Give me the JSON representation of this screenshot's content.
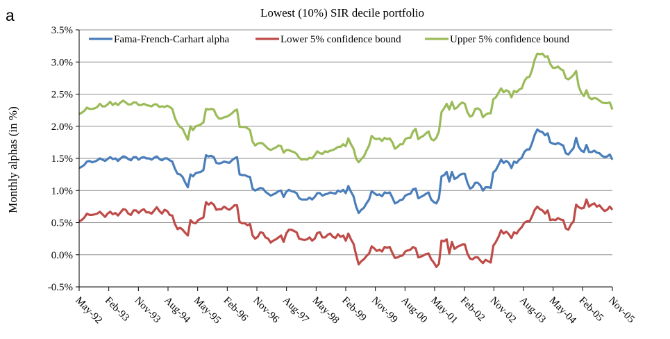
{
  "chart_data": {
    "type": "line",
    "panel_label": "a",
    "title": "Lowest (10%) SIR decile portfolio",
    "xlabel": "",
    "ylabel": "Monthly  alphas (in %)",
    "ylim": [
      -0.5,
      3.5
    ],
    "y_ticks": [
      "-0.5%",
      "0.0%",
      "0.5%",
      "1.0%",
      "1.5%",
      "2.0%",
      "2.5%",
      "3.0%",
      "3.5%"
    ],
    "y_tick_values": [
      -0.5,
      0,
      0.5,
      1,
      1.5,
      2,
      2.5,
      3,
      3.5
    ],
    "x_ticks": [
      "May-92",
      "Feb-93",
      "Nov-93",
      "Aug-94",
      "May-95",
      "Feb-96",
      "Nov-96",
      "Aug-97",
      "May-98",
      "Feb-99",
      "Nov-99",
      "Aug-00",
      "May-01",
      "Feb-02",
      "Nov-02",
      "Aug-03",
      "May-04",
      "Feb-05",
      "Nov-05"
    ],
    "x_start": "May-92",
    "x_end": "Nov-05",
    "grid": "horizontal",
    "legend_position": "top",
    "series": [
      {
        "name": "Fama-French-Carhart alpha",
        "color": "#4a7ebb",
        "values": [
          1.35,
          1.37,
          1.4,
          1.45,
          1.46,
          1.44,
          1.45,
          1.47,
          1.5,
          1.48,
          1.46,
          1.49,
          1.52,
          1.49,
          1.5,
          1.46,
          1.5,
          1.53,
          1.52,
          1.49,
          1.47,
          1.52,
          1.52,
          1.48,
          1.51,
          1.52,
          1.5,
          1.5,
          1.48,
          1.51,
          1.53,
          1.49,
          1.47,
          1.5,
          1.5,
          1.47,
          1.45,
          1.34,
          1.26,
          1.25,
          1.21,
          1.12,
          1.05,
          1.25,
          1.22,
          1.27,
          1.28,
          1.29,
          1.32,
          1.55,
          1.53,
          1.54,
          1.52,
          1.43,
          1.42,
          1.43,
          1.45,
          1.44,
          1.43,
          1.47,
          1.5,
          1.52,
          1.25,
          1.24,
          1.24,
          1.22,
          1.21,
          1.03,
          1.0,
          1.02,
          1.04,
          1.03,
          0.98,
          0.95,
          0.92,
          0.94,
          0.96,
          0.99,
          1.0,
          0.9,
          0.98,
          1.01,
          0.99,
          0.98,
          0.96,
          0.88,
          0.86,
          0.86,
          0.86,
          0.89,
          0.86,
          0.9,
          0.96,
          0.96,
          0.92,
          0.94,
          0.95,
          0.97,
          0.96,
          0.95,
          1.0,
          0.98,
          1.01,
          0.96,
          1.07,
          0.98,
          0.91,
          0.75,
          0.65,
          0.7,
          0.73,
          0.8,
          0.86,
          0.99,
          0.96,
          0.93,
          0.94,
          0.91,
          0.97,
          0.96,
          0.97,
          0.89,
          0.8,
          0.82,
          0.85,
          0.86,
          0.92,
          0.94,
          0.95,
          1.02,
          1.03,
          0.88,
          0.9,
          0.92,
          0.95,
          0.97,
          0.86,
          0.82,
          0.8,
          0.88,
          1.22,
          1.24,
          1.29,
          1.14,
          1.29,
          1.18,
          1.2,
          1.24,
          1.26,
          1.26,
          1.12,
          1.03,
          1.05,
          1.12,
          1.12,
          1.08,
          1.0,
          1.05,
          1.05,
          1.04,
          1.28,
          1.32,
          1.4,
          1.48,
          1.43,
          1.46,
          1.43,
          1.35,
          1.45,
          1.43,
          1.48,
          1.51,
          1.6,
          1.64,
          1.64,
          1.74,
          1.87,
          1.95,
          1.92,
          1.91,
          1.86,
          1.89,
          1.75,
          1.73,
          1.72,
          1.74,
          1.72,
          1.7,
          1.58,
          1.56,
          1.61,
          1.66,
          1.82,
          1.68,
          1.62,
          1.6,
          1.71,
          1.6,
          1.6,
          1.62,
          1.59,
          1.58,
          1.54,
          1.52,
          1.53,
          1.56,
          1.48
        ]
      },
      {
        "name": "Lower 5% confidence bound",
        "color": "#be4b48",
        "values": [
          0.52,
          0.54,
          0.58,
          0.64,
          0.62,
          0.62,
          0.63,
          0.64,
          0.67,
          0.63,
          0.59,
          0.64,
          0.67,
          0.63,
          0.65,
          0.61,
          0.66,
          0.71,
          0.7,
          0.64,
          0.62,
          0.69,
          0.69,
          0.65,
          0.69,
          0.71,
          0.66,
          0.66,
          0.64,
          0.69,
          0.74,
          0.68,
          0.64,
          0.7,
          0.68,
          0.62,
          0.61,
          0.48,
          0.4,
          0.42,
          0.39,
          0.34,
          0.3,
          0.54,
          0.5,
          0.49,
          0.54,
          0.56,
          0.58,
          0.82,
          0.78,
          0.81,
          0.78,
          0.7,
          0.71,
          0.71,
          0.75,
          0.72,
          0.7,
          0.73,
          0.77,
          0.77,
          0.51,
          0.49,
          0.49,
          0.46,
          0.48,
          0.3,
          0.25,
          0.28,
          0.35,
          0.34,
          0.27,
          0.25,
          0.19,
          0.22,
          0.24,
          0.27,
          0.3,
          0.2,
          0.33,
          0.39,
          0.39,
          0.37,
          0.35,
          0.25,
          0.24,
          0.23,
          0.24,
          0.27,
          0.22,
          0.25,
          0.34,
          0.35,
          0.27,
          0.27,
          0.31,
          0.33,
          0.28,
          0.26,
          0.32,
          0.28,
          0.3,
          0.22,
          0.33,
          0.24,
          0.17,
          0.0,
          -0.15,
          -0.1,
          -0.07,
          -0.02,
          0.02,
          0.13,
          0.1,
          0.06,
          0.08,
          0.05,
          0.12,
          0.11,
          0.12,
          0.03,
          -0.05,
          -0.04,
          -0.02,
          -0.01,
          0.05,
          0.07,
          0.08,
          0.12,
          0.1,
          -0.04,
          -0.03,
          -0.01,
          0.01,
          0.02,
          -0.07,
          -0.12,
          -0.19,
          -0.14,
          0.22,
          0.21,
          0.24,
          0.02,
          0.2,
          0.09,
          0.12,
          0.14,
          0.16,
          0.16,
          0.02,
          -0.06,
          -0.07,
          -0.04,
          -0.04,
          -0.09,
          -0.13,
          -0.08,
          -0.1,
          -0.12,
          0.14,
          0.2,
          0.28,
          0.38,
          0.33,
          0.36,
          0.32,
          0.26,
          0.35,
          0.33,
          0.39,
          0.43,
          0.5,
          0.52,
          0.52,
          0.6,
          0.7,
          0.75,
          0.71,
          0.69,
          0.64,
          0.69,
          0.54,
          0.55,
          0.54,
          0.57,
          0.55,
          0.54,
          0.41,
          0.39,
          0.47,
          0.52,
          0.78,
          0.74,
          0.72,
          0.73,
          0.86,
          0.75,
          0.78,
          0.8,
          0.75,
          0.77,
          0.72,
          0.68,
          0.7,
          0.75,
          0.7
        ]
      },
      {
        "name": "Upper 5% confidence bound",
        "color": "#9bbb59",
        "values": [
          2.19,
          2.21,
          2.24,
          2.29,
          2.27,
          2.27,
          2.28,
          2.3,
          2.35,
          2.31,
          2.31,
          2.34,
          2.38,
          2.33,
          2.36,
          2.33,
          2.37,
          2.4,
          2.37,
          2.34,
          2.34,
          2.37,
          2.37,
          2.33,
          2.33,
          2.35,
          2.33,
          2.32,
          2.31,
          2.34,
          2.34,
          2.3,
          2.31,
          2.3,
          2.32,
          2.3,
          2.27,
          2.13,
          2.04,
          1.99,
          1.96,
          1.87,
          1.79,
          2.0,
          1.94,
          2.0,
          2.01,
          2.03,
          2.06,
          2.27,
          2.26,
          2.27,
          2.26,
          2.17,
          2.12,
          2.12,
          2.14,
          2.15,
          2.17,
          2.2,
          2.24,
          2.26,
          1.99,
          1.99,
          1.99,
          1.97,
          1.94,
          1.76,
          1.7,
          1.73,
          1.74,
          1.73,
          1.69,
          1.65,
          1.63,
          1.65,
          1.67,
          1.7,
          1.69,
          1.59,
          1.63,
          1.63,
          1.61,
          1.6,
          1.57,
          1.51,
          1.48,
          1.49,
          1.48,
          1.51,
          1.5,
          1.55,
          1.61,
          1.58,
          1.57,
          1.61,
          1.6,
          1.62,
          1.63,
          1.65,
          1.68,
          1.68,
          1.72,
          1.69,
          1.81,
          1.72,
          1.65,
          1.5,
          1.44,
          1.49,
          1.53,
          1.62,
          1.7,
          1.85,
          1.81,
          1.8,
          1.81,
          1.77,
          1.82,
          1.8,
          1.81,
          1.75,
          1.65,
          1.68,
          1.72,
          1.72,
          1.8,
          1.82,
          1.82,
          1.92,
          1.96,
          1.8,
          1.83,
          1.85,
          1.89,
          1.92,
          1.8,
          1.78,
          1.82,
          1.92,
          2.22,
          2.28,
          2.35,
          2.26,
          2.38,
          2.27,
          2.29,
          2.34,
          2.37,
          2.35,
          2.22,
          2.15,
          2.17,
          2.27,
          2.28,
          2.25,
          2.14,
          2.18,
          2.2,
          2.2,
          2.42,
          2.45,
          2.52,
          2.59,
          2.53,
          2.56,
          2.54,
          2.45,
          2.55,
          2.53,
          2.57,
          2.59,
          2.7,
          2.76,
          2.77,
          2.88,
          3.04,
          3.13,
          3.12,
          3.13,
          3.08,
          3.09,
          2.97,
          2.91,
          2.91,
          2.93,
          2.89,
          2.87,
          2.75,
          2.73,
          2.76,
          2.8,
          2.86,
          2.62,
          2.52,
          2.47,
          2.56,
          2.45,
          2.42,
          2.44,
          2.43,
          2.4,
          2.37,
          2.36,
          2.36,
          2.37,
          2.26
        ]
      }
    ]
  }
}
